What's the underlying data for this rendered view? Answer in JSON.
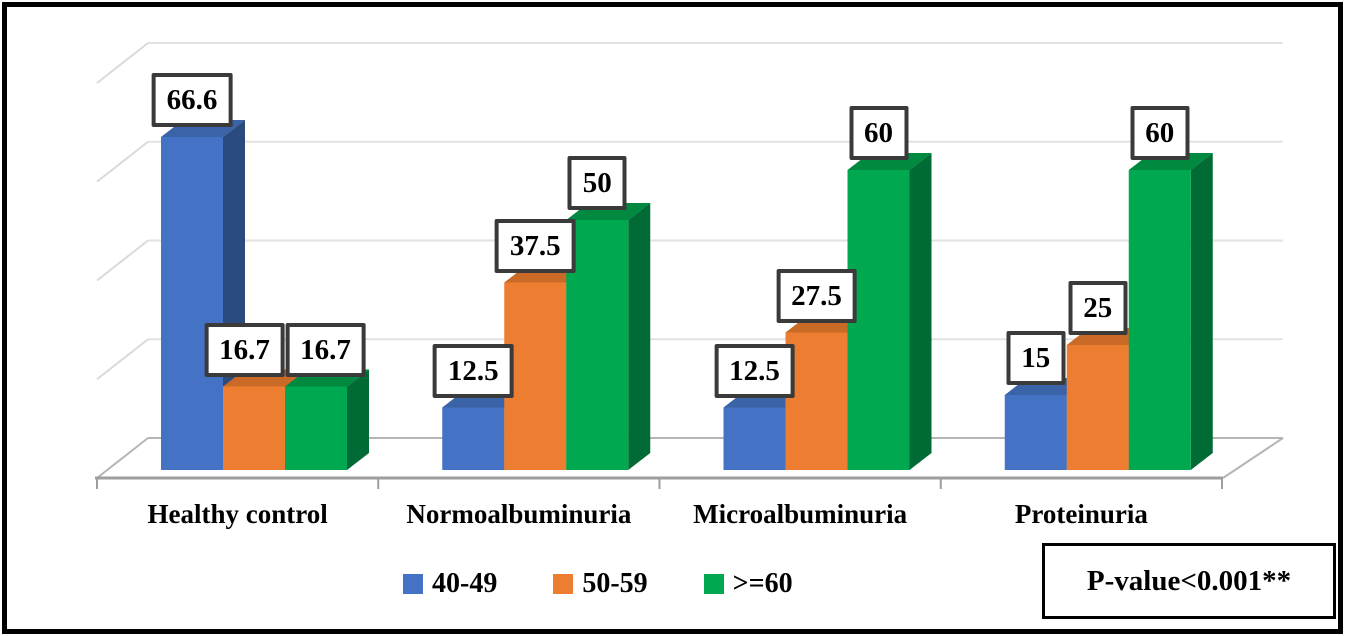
{
  "chart_data": {
    "type": "bar",
    "style": "3d-clustered-column",
    "title": "",
    "categories": [
      "Healthy control",
      "Normoalbuminuria",
      "Microalbuminuria",
      "Proteinuria"
    ],
    "series": [
      {
        "name": "40-49",
        "color": "#4472C4",
        "color_top": "#3A63A8",
        "color_side": "#2B4A7D",
        "values": [
          66.6,
          12.5,
          12.5,
          15
        ]
      },
      {
        "name": "50-59",
        "color": "#ED7D31",
        "color_top": "#C96A26",
        "color_side": "#A85520",
        "values": [
          16.7,
          37.5,
          27.5,
          25
        ]
      },
      {
        "name": ">=60",
        "color": "#00A94F",
        "color_top": "#00893F",
        "color_side": "#006B35",
        "values": [
          16.7,
          50,
          60,
          60
        ]
      }
    ],
    "value_axis": {
      "min": 0,
      "max": 80,
      "gridline_step": 20,
      "tick_labels_visible": false
    },
    "category_axis": {
      "labels_visible": true
    },
    "grid": "horizontal-gridlines-on-3d-walls",
    "legend_position": "bottom",
    "data_labels": "boxed-above-bars"
  },
  "annotation": {
    "p_value_label": "P-value<0.001**"
  },
  "colors": {
    "gridline": "#E2E2E2",
    "wall_diagonal": "#DADADA",
    "floor_edge": "#B5B5B5",
    "axis_line": "#9E9E9E",
    "label_box_border": "#3A3A3A",
    "outer_frame": "#000000",
    "background": "#FFFFFF"
  }
}
